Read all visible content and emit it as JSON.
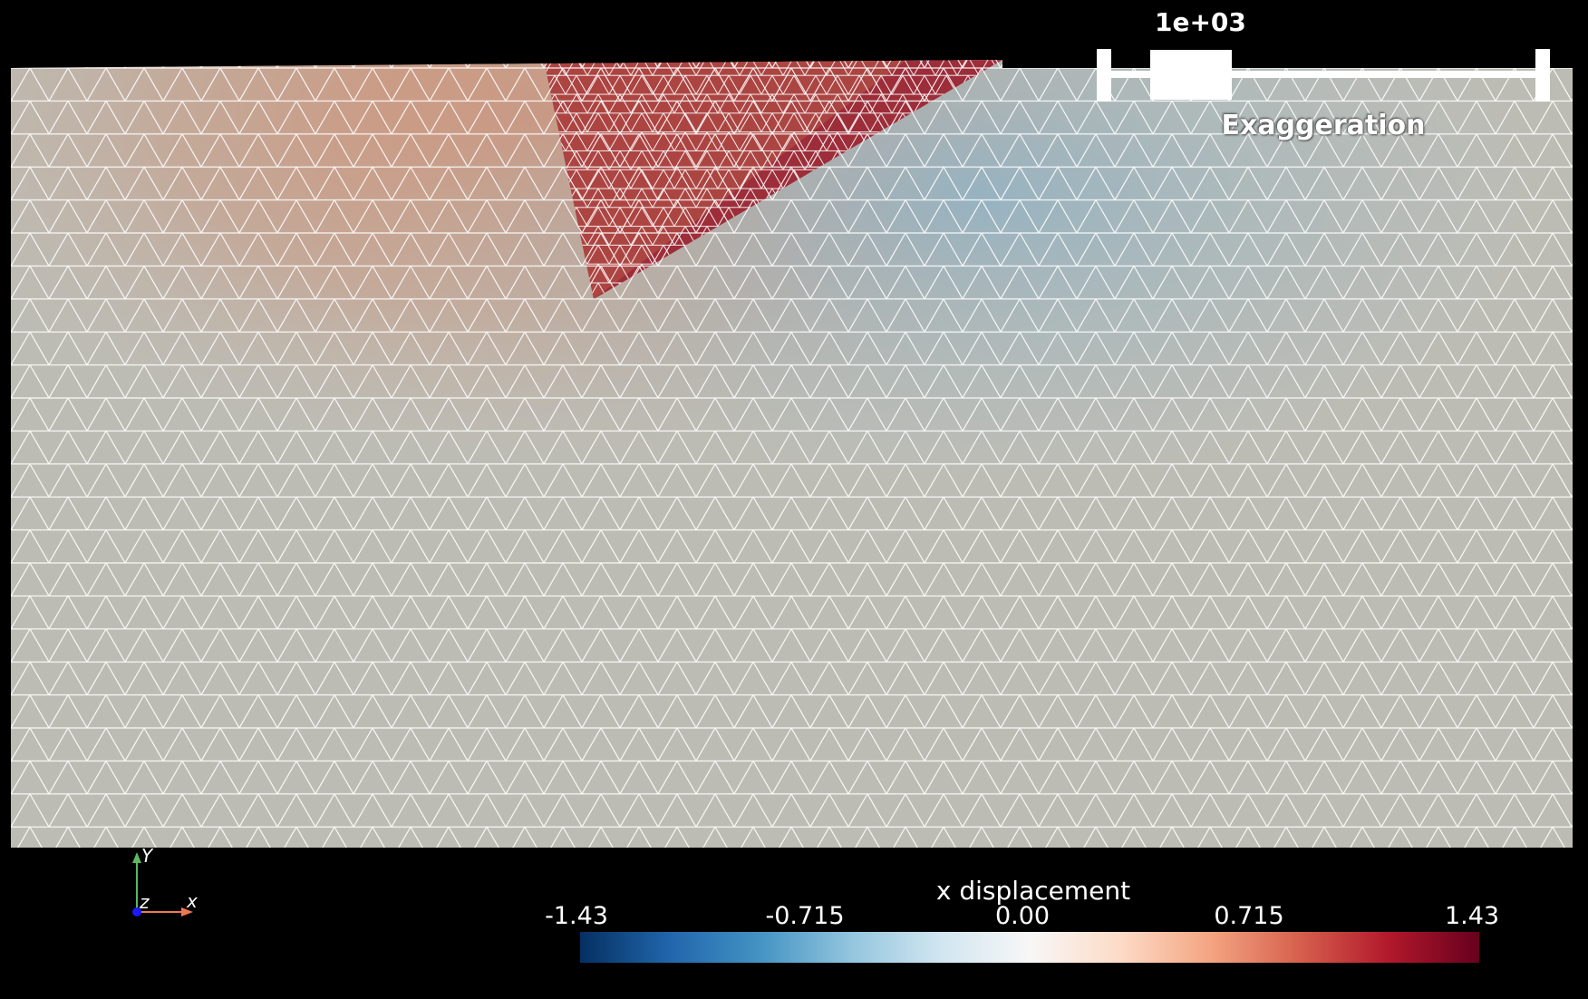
{
  "viewer": {
    "background": "#000000",
    "mesh_line_color": "#ffffff",
    "surface_base_color": "#bdbcb4"
  },
  "exaggeration": {
    "value_label": "1e+03",
    "title": "Exaggeration",
    "slider_value_fraction": 0.2
  },
  "colorbar": {
    "title": "x displacement",
    "ticks": [
      "-1.43",
      "-0.715",
      "0.00",
      "0.715",
      "1.43"
    ],
    "colormap": "blue-white-red diverging",
    "colors": [
      "#053061",
      "#2166ac",
      "#4393c3",
      "#92c5de",
      "#d1e5f0",
      "#f7f7f7",
      "#fddbc7",
      "#f4a582",
      "#d6604d",
      "#b2182b",
      "#67001f"
    ],
    "range": [
      -1.43,
      1.43
    ]
  },
  "orientation_axes": {
    "x_label": "x",
    "y_label": "Y",
    "z_label": "z",
    "x_color": "#f07850",
    "y_color": "#5cb85c",
    "z_color": "#1a1aff"
  }
}
